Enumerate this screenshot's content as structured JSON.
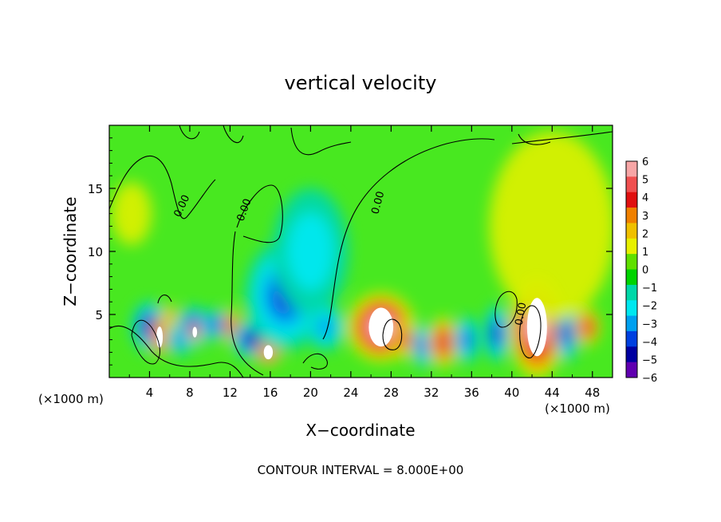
{
  "chart_data": {
    "type": "heatmap",
    "title": "vertical velocity",
    "xlabel": "X−coordinate",
    "ylabel": "Z−coordinate",
    "x_unit_left": "(×1000 m)",
    "x_unit_right": "(×1000 m)",
    "footer": "CONTOUR INTERVAL = 8.000E+00",
    "xlim": [
      0,
      50
    ],
    "ylim": [
      0,
      20
    ],
    "x_ticks": [
      4,
      8,
      12,
      16,
      20,
      24,
      28,
      32,
      36,
      40,
      44,
      48
    ],
    "x_tick_labels": [
      "4",
      "8",
      "12",
      "16",
      "20",
      "24",
      "28",
      "32",
      "36",
      "40",
      "44",
      "48"
    ],
    "y_ticks": [
      5,
      10,
      15
    ],
    "y_tick_labels": [
      "5",
      "10",
      "15"
    ],
    "grid": false,
    "contour_labels": [
      {
        "text": "0.00",
        "x": 7.5,
        "z": 13.5,
        "angle": -65
      },
      {
        "text": "0.00",
        "x": 13.7,
        "z": 13.2,
        "angle": -70
      },
      {
        "text": "0.00",
        "x": 27.0,
        "z": 13.8,
        "angle": -75
      },
      {
        "text": "0.00",
        "x": 41.2,
        "z": 5.0,
        "angle": -80
      }
    ],
    "colorbar": {
      "levels": [
        "6",
        "5",
        "4",
        "3",
        "2",
        "1",
        "0",
        "−1",
        "−2",
        "−3",
        "−4",
        "−5",
        "−6"
      ],
      "colors": [
        "#f7a6a6",
        "#f05050",
        "#e01010",
        "#f08000",
        "#f0c000",
        "#e8f000",
        "#60e000",
        "#00d400",
        "#00d8a8",
        "#00e8f0",
        "#00a0f0",
        "#0040e0",
        "#0000a0",
        "#6000b0"
      ],
      "position": "right"
    },
    "features": [
      {
        "x": 2.2,
        "z": 13.0,
        "rx": 1.6,
        "rz": 2.0,
        "value": 0.2
      },
      {
        "x": 4.0,
        "z": 4.0,
        "rx": 1.4,
        "rz": 1.6,
        "value": -5.5
      },
      {
        "x": 5.0,
        "z": 3.2,
        "rx": 0.7,
        "rz": 1.2,
        "value": 6.5
      },
      {
        "x": 6.0,
        "z": 4.8,
        "rx": 0.6,
        "rz": 0.8,
        "value": 2.5
      },
      {
        "x": 7.0,
        "z": 3.0,
        "rx": 1.0,
        "rz": 1.0,
        "value": -4.0
      },
      {
        "x": 8.4,
        "z": 4.0,
        "rx": 1.4,
        "rz": 1.3,
        "value": -5.5
      },
      {
        "x": 8.5,
        "z": 3.6,
        "rx": 0.5,
        "rz": 0.6,
        "value": 6.5
      },
      {
        "x": 10.8,
        "z": 4.2,
        "rx": 1.0,
        "rz": 1.0,
        "value": -5.0
      },
      {
        "x": 12.2,
        "z": 4.0,
        "rx": 0.7,
        "rz": 1.2,
        "value": 4.5
      },
      {
        "x": 14.2,
        "z": 3.0,
        "rx": 1.6,
        "rz": 1.2,
        "value": -5.5
      },
      {
        "x": 15.8,
        "z": 2.0,
        "rx": 1.0,
        "rz": 0.8,
        "value": 6.5
      },
      {
        "x": 17.5,
        "z": 6.5,
        "rx": 3.2,
        "rz": 3.5,
        "value": -3.5
      },
      {
        "x": 20.0,
        "z": 10.0,
        "rx": 3.0,
        "rz": 4.0,
        "value": -2.0
      },
      {
        "x": 21.5,
        "z": 4.0,
        "rx": 1.5,
        "rz": 1.5,
        "value": -3.0
      },
      {
        "x": 27.0,
        "z": 4.0,
        "rx": 2.7,
        "rz": 2.2,
        "value": 6.5
      },
      {
        "x": 29.5,
        "z": 3.0,
        "rx": 1.0,
        "rz": 1.2,
        "value": 4.0
      },
      {
        "x": 31.2,
        "z": 2.5,
        "rx": 0.9,
        "rz": 1.4,
        "value": -4.0
      },
      {
        "x": 33.2,
        "z": 2.8,
        "rx": 1.2,
        "rz": 1.6,
        "value": 4.5
      },
      {
        "x": 35.5,
        "z": 3.0,
        "rx": 1.0,
        "rz": 1.5,
        "value": -4.0
      },
      {
        "x": 38.5,
        "z": 3.5,
        "rx": 1.0,
        "rz": 1.8,
        "value": -5.0
      },
      {
        "x": 42.5,
        "z": 4.0,
        "rx": 2.2,
        "rz": 3.3,
        "value": 6.5
      },
      {
        "x": 45.5,
        "z": 3.5,
        "rx": 0.9,
        "rz": 1.8,
        "value": -5.0
      },
      {
        "x": 47.5,
        "z": 4.0,
        "rx": 1.0,
        "rz": 1.2,
        "value": 4.5
      },
      {
        "x": 44.0,
        "z": 12.0,
        "rx": 5.0,
        "rz": 6.0,
        "value": 0.6
      }
    ]
  }
}
